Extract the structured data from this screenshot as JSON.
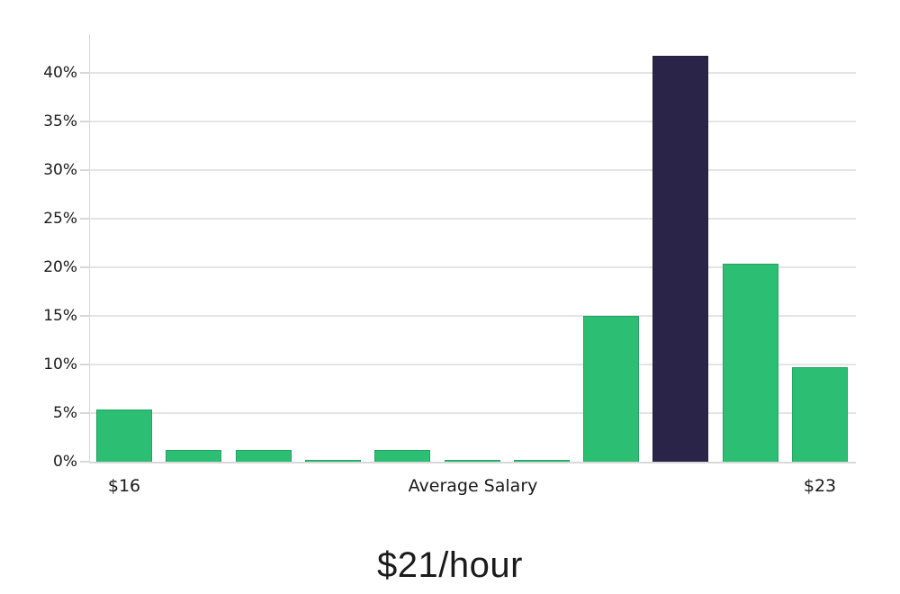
{
  "chart_data": {
    "type": "bar",
    "title": "$21/hour",
    "xlabel": "Average Salary",
    "ylabel": "",
    "n_bars": 11,
    "values": [
      5.4,
      1.2,
      1.2,
      0.2,
      1.2,
      0.2,
      0.2,
      15.0,
      41.8,
      20.4,
      9.7
    ],
    "highlight_index": 8,
    "x_ticks": [
      {
        "bar_index": 0,
        "label": "$16"
      },
      {
        "bar_index": 10,
        "label": "$23"
      }
    ],
    "y_ticks": [
      {
        "value": 0,
        "label": "0%"
      },
      {
        "value": 5,
        "label": "5%"
      },
      {
        "value": 10,
        "label": "10%"
      },
      {
        "value": 15,
        "label": "15%"
      },
      {
        "value": 20,
        "label": "20%"
      },
      {
        "value": 25,
        "label": "25%"
      },
      {
        "value": 30,
        "label": "30%"
      },
      {
        "value": 35,
        "label": "35%"
      },
      {
        "value": 40,
        "label": "40%"
      }
    ],
    "ylim": [
      0,
      44
    ],
    "grid": true,
    "legend": false,
    "colors": {
      "bar": "#2cbe73",
      "highlight": "#2a2449",
      "grid": "#e4e4e4",
      "axis": "#d8d8d8",
      "tick_text": "#1a1a1a",
      "title_text": "#1b1b1b"
    }
  }
}
